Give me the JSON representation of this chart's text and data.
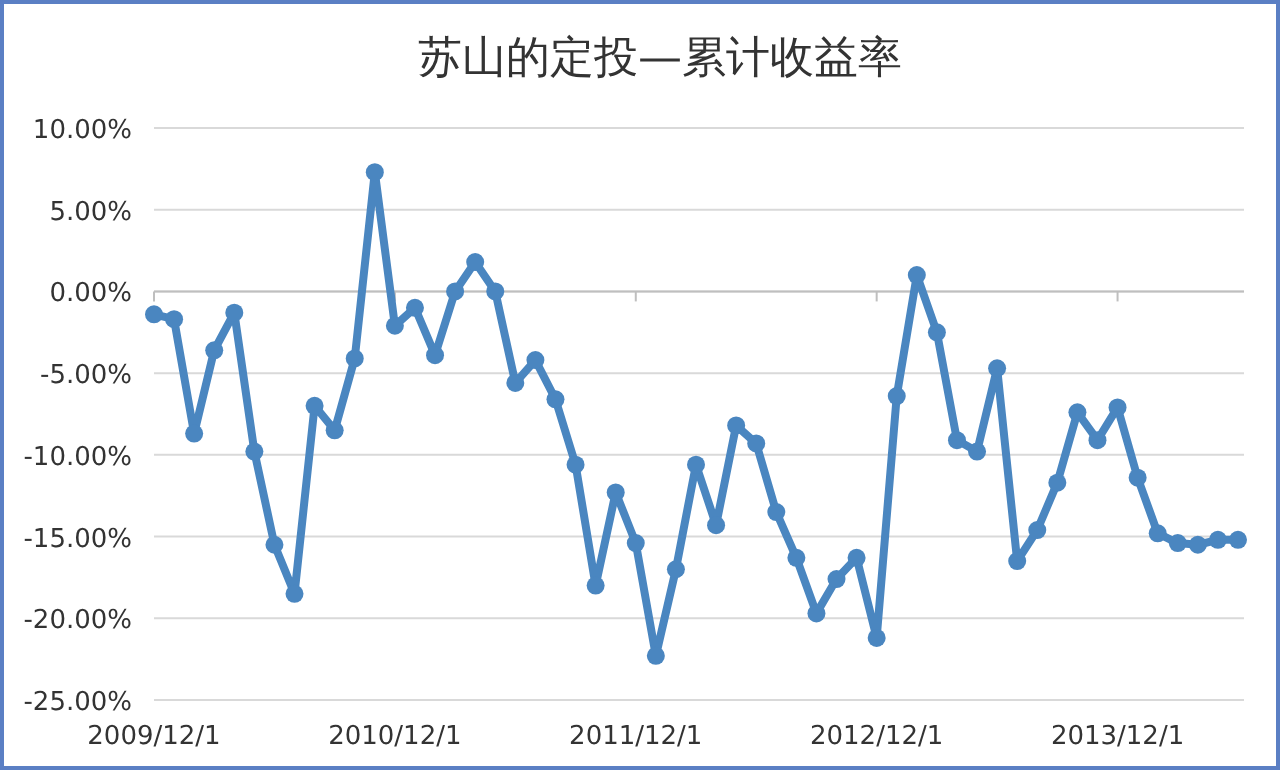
{
  "chart_data": {
    "type": "line",
    "title": "苏山的定投—累计收益率",
    "categories": [
      "2009/12/1",
      null,
      null,
      null,
      null,
      null,
      null,
      null,
      null,
      null,
      null,
      null,
      "2010/12/1",
      null,
      null,
      null,
      null,
      null,
      null,
      null,
      null,
      null,
      null,
      null,
      "2011/12/1",
      null,
      null,
      null,
      null,
      null,
      null,
      null,
      null,
      null,
      null,
      null,
      "2012/12/1",
      null,
      null,
      null,
      null,
      null,
      null,
      null,
      null,
      null,
      null,
      null,
      "2013/12/1",
      null,
      null,
      null,
      null,
      null,
      null
    ],
    "series": [
      {
        "color": "#4a86c0",
        "values": [
          -1.4,
          -1.7,
          -8.7,
          -3.6,
          -1.3,
          -9.8,
          -15.5,
          -18.5,
          -7.0,
          -8.5,
          -4.1,
          7.3,
          -2.1,
          -1.0,
          -3.9,
          0,
          1.8,
          0,
          -5.6,
          -4.2,
          -6.6,
          -10.6,
          -18.0,
          -12.3,
          -15.4,
          -22.3,
          -17.0,
          -10.6,
          -14.3,
          -8.2,
          -9.3,
          -13.5,
          -16.3,
          -19.7,
          -17.6,
          -16.3,
          -21.2,
          -6.4,
          1.0,
          -2.5,
          -9.1,
          -9.8,
          -4.7,
          -16.5,
          -14.6,
          -11.7,
          -7.4,
          -9.1,
          -7.1,
          -11.4,
          -14.8,
          -15.4,
          -15.5,
          -15.2,
          -15.2
        ]
      }
    ],
    "ylim": [
      -25,
      10
    ],
    "yticks": [
      {
        "value": 10,
        "label": "10.00%"
      },
      {
        "value": 5,
        "label": "5.00%"
      },
      {
        "value": 0,
        "label": "0.00%"
      },
      {
        "value": -5,
        "label": "-5.00%"
      },
      {
        "value": -10,
        "label": "-10.00%"
      },
      {
        "value": -15,
        "label": "-15.00%"
      },
      {
        "value": -20,
        "label": "-20.00%"
      },
      {
        "value": -25,
        "label": "-25.00%"
      }
    ],
    "grid": "y",
    "marker": "circle"
  }
}
